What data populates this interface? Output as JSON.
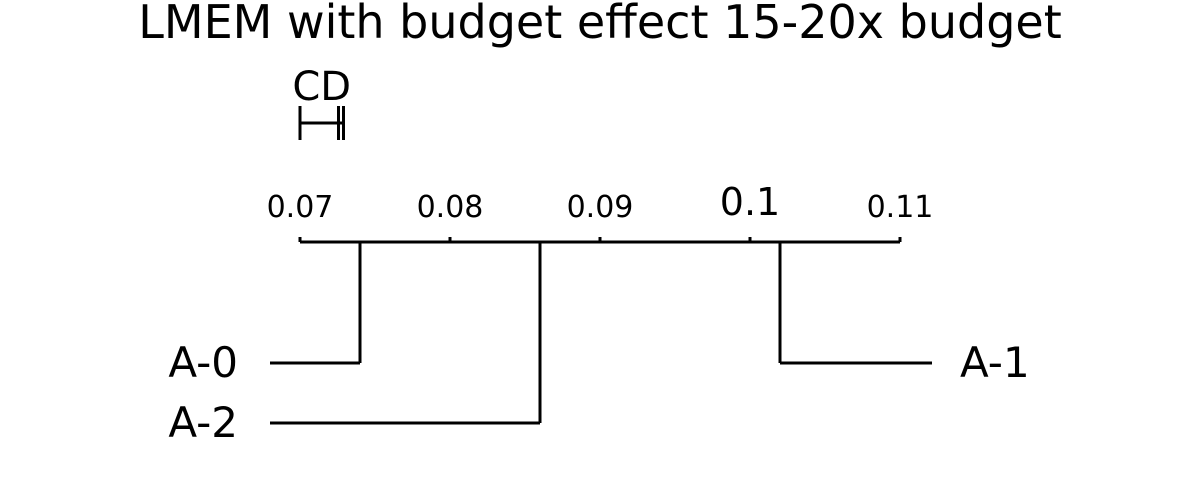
{
  "chart_data": {
    "type": "critical-difference-diagram",
    "title": "LMEM with budget effect 15-20x budget",
    "axis": {
      "range": [
        0.07,
        0.11
      ],
      "ticks": [
        0.07,
        0.08,
        0.09,
        0.1,
        0.11
      ],
      "tick_labels": [
        "0.07",
        "0.08",
        "0.09",
        "0.1",
        "0.11"
      ]
    },
    "cd": {
      "label": "CD",
      "start": 0.07,
      "value": 0.0029
    },
    "methods": [
      {
        "name": "A-0",
        "value": 0.074,
        "side": "left"
      },
      {
        "name": "A-2",
        "value": 0.086,
        "side": "left"
      },
      {
        "name": "A-1",
        "value": 0.102,
        "side": "right"
      }
    ],
    "grid": false
  }
}
